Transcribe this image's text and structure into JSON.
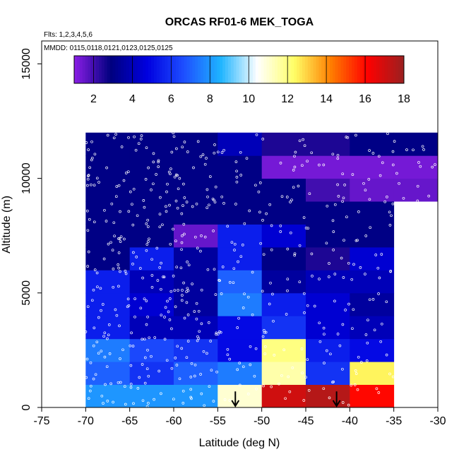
{
  "chart_data": {
    "type": "heatmap",
    "title": "ORCAS RF01-6 MEK_TOGA",
    "subtitle_flights": "Flts: 1,2,3,4,5,6",
    "subtitle_dates": "MMDD: 0115,0118,0121,0123,0125,0125",
    "xlabel": "Latitude (deg N)",
    "ylabel": "Altitude (m)",
    "xlim": [
      -75,
      -30
    ],
    "ylim": [
      0,
      16000
    ],
    "x_ticks": [
      "-75",
      "-70",
      "-65",
      "-60",
      "-55",
      "-50",
      "-45",
      "-40",
      "-35",
      "-30"
    ],
    "y_ticks": [
      "0",
      "5000",
      "10000",
      "15000"
    ],
    "colorbar": {
      "min": 1,
      "max": 18,
      "ticks": [
        "2",
        "4",
        "6",
        "8",
        "10",
        "12",
        "14",
        "16",
        "18"
      ],
      "colors": [
        "#8B1EE6",
        "#00007F",
        "#0000E0",
        "#1E4FFF",
        "#1EB4FF",
        "#FFFFFF",
        "#FFFF66",
        "#FF7F00",
        "#FF0000",
        "#9A2020"
      ]
    },
    "x_edges": [
      -70,
      -65,
      -60,
      -55,
      -50,
      -45,
      -40,
      -35,
      -30
    ],
    "y_edges": [
      0,
      1000,
      2000,
      3000,
      4000,
      5000,
      6000,
      7000,
      8000,
      9000,
      10000,
      11000,
      12000
    ],
    "cells": [
      [
        8,
        8,
        8,
        11,
        17,
        17.5,
        16,
        null
      ],
      [
        7,
        6,
        7,
        7.5,
        11.5,
        6,
        12.5,
        null
      ],
      [
        7.5,
        6.5,
        6,
        5,
        12,
        5.5,
        5,
        null
      ],
      [
        5.5,
        4,
        4,
        5,
        6,
        4.5,
        4,
        null
      ],
      [
        5.5,
        4.5,
        3.5,
        7.5,
        5.5,
        4.5,
        3.5,
        null
      ],
      [
        5.5,
        4,
        3.5,
        7,
        3.5,
        4,
        4,
        null
      ],
      [
        3,
        5.5,
        3.5,
        5.5,
        3,
        2.5,
        4.5,
        null
      ],
      [
        3,
        3,
        1.5,
        5.5,
        4.5,
        3,
        3,
        null
      ],
      [
        3,
        3,
        3,
        3,
        3,
        3,
        3,
        null
      ],
      [
        3,
        3,
        3,
        3,
        3,
        2,
        1.5,
        1.5
      ],
      [
        3,
        3,
        3,
        3,
        1.3,
        1.3,
        1.3,
        1.3
      ],
      [
        3,
        3,
        3,
        4,
        2.5,
        2.5,
        3,
        3
      ]
    ],
    "arrows_latitude": [
      -53,
      -41.5
    ]
  }
}
